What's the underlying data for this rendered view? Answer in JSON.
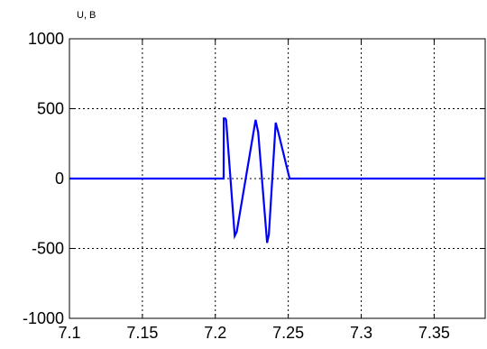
{
  "chart_data": {
    "type": "line",
    "title": "",
    "xlabel": "",
    "ylabel": "U, B",
    "xlim": [
      7.1,
      7.385
    ],
    "ylim": [
      -1000,
      1000
    ],
    "xticks": [
      7.1,
      7.15,
      7.2,
      7.25,
      7.3,
      7.35
    ],
    "xtick_labels": [
      "7.1",
      "7.15",
      "7.2",
      "7.25",
      "7.3",
      "7.35"
    ],
    "yticks": [
      1000,
      500,
      0,
      -500,
      -1000
    ],
    "ytick_labels": [
      "1000",
      "500",
      "0",
      "-500",
      "-1000"
    ],
    "grid": true,
    "grid_style": "dotted",
    "series": [
      {
        "color": "#0000ff",
        "x": [
          7.1,
          7.2057,
          7.2058,
          7.2068,
          7.2074,
          7.2133,
          7.2147,
          7.2276,
          7.2294,
          7.2355,
          7.2367,
          7.2414,
          7.2432,
          7.2509,
          7.2514,
          7.385
        ],
        "y": [
          0,
          0,
          430,
          430,
          420,
          -410,
          -380,
          420,
          330,
          -460,
          -400,
          400,
          330,
          0,
          0,
          0
        ]
      }
    ]
  }
}
